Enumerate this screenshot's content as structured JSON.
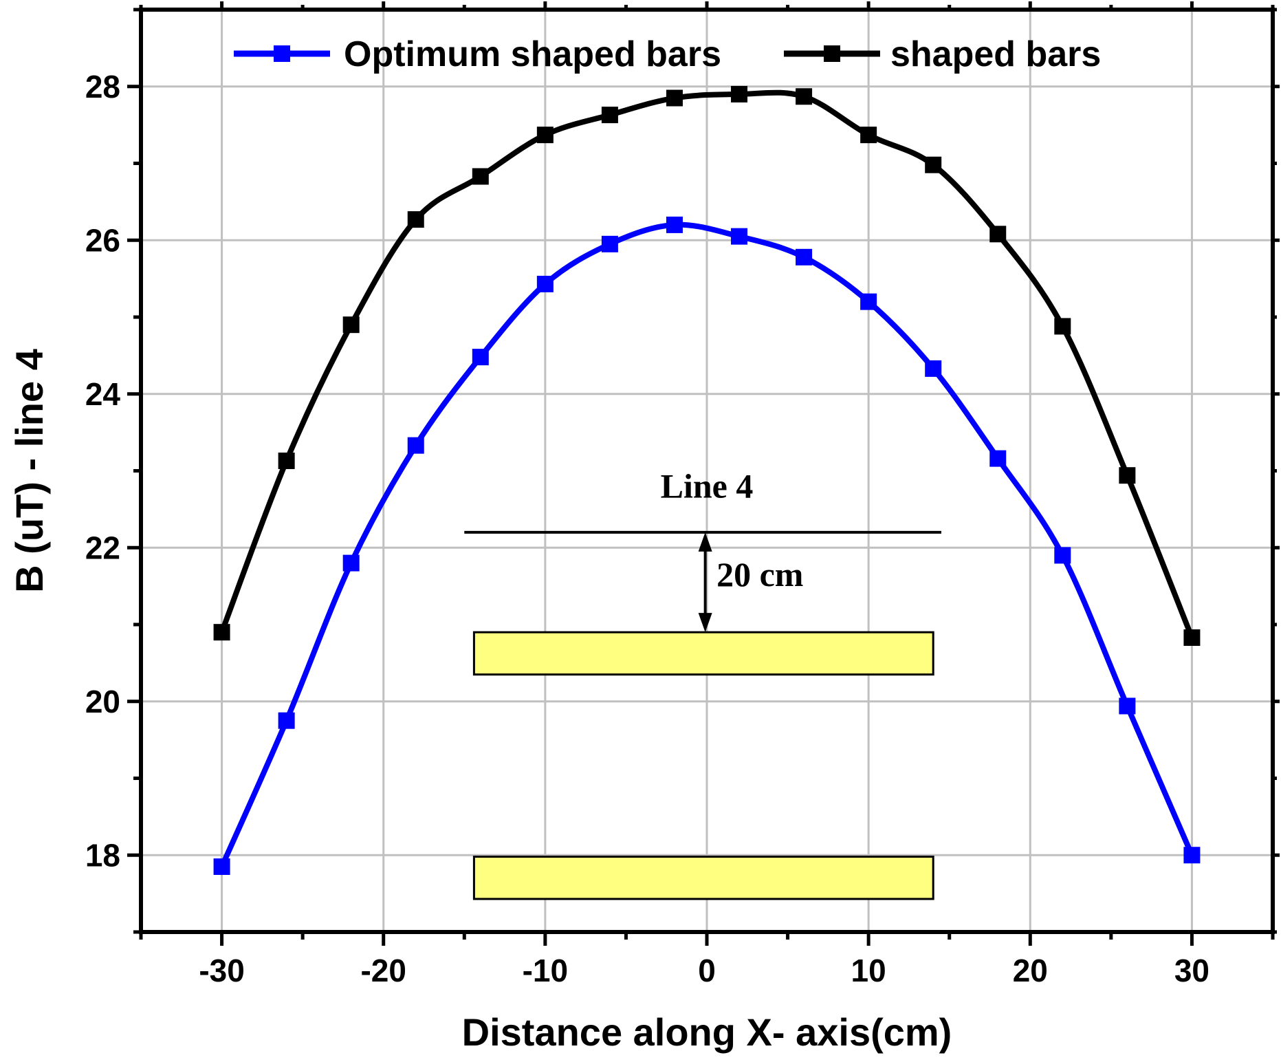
{
  "chart_data": {
    "type": "line",
    "title": "",
    "xlabel": "Distance along X- axis(cm)",
    "ylabel": "B (uT) - line 4",
    "xlim": [
      -35,
      35
    ],
    "ylim": [
      17,
      29
    ],
    "xticks": [
      -30,
      -20,
      -10,
      0,
      10,
      20,
      30
    ],
    "yticks": [
      18,
      20,
      22,
      24,
      26,
      28
    ],
    "grid": true,
    "legend_position": "top",
    "x": [
      -30,
      -26,
      -22,
      -18,
      -14,
      -10,
      -6,
      -2,
      2,
      6,
      10,
      14,
      18,
      22,
      26,
      30
    ],
    "series": [
      {
        "name": "Optimum shaped bars",
        "color": "#0000ff",
        "values": [
          17.85,
          19.75,
          21.8,
          23.33,
          24.48,
          25.43,
          25.95,
          26.2,
          26.05,
          25.78,
          25.2,
          24.33,
          23.16,
          21.9,
          19.94,
          18.0
        ]
      },
      {
        "name": "shaped bars",
        "color": "#000000",
        "values": [
          20.9,
          23.13,
          24.9,
          26.27,
          26.83,
          27.37,
          27.63,
          27.85,
          27.9,
          27.87,
          27.37,
          26.98,
          26.08,
          24.88,
          22.94,
          20.83
        ]
      }
    ],
    "annotations": {
      "line_label": "Line 4",
      "distance_label": "20 cm",
      "bar_color": "#ffff80"
    }
  }
}
